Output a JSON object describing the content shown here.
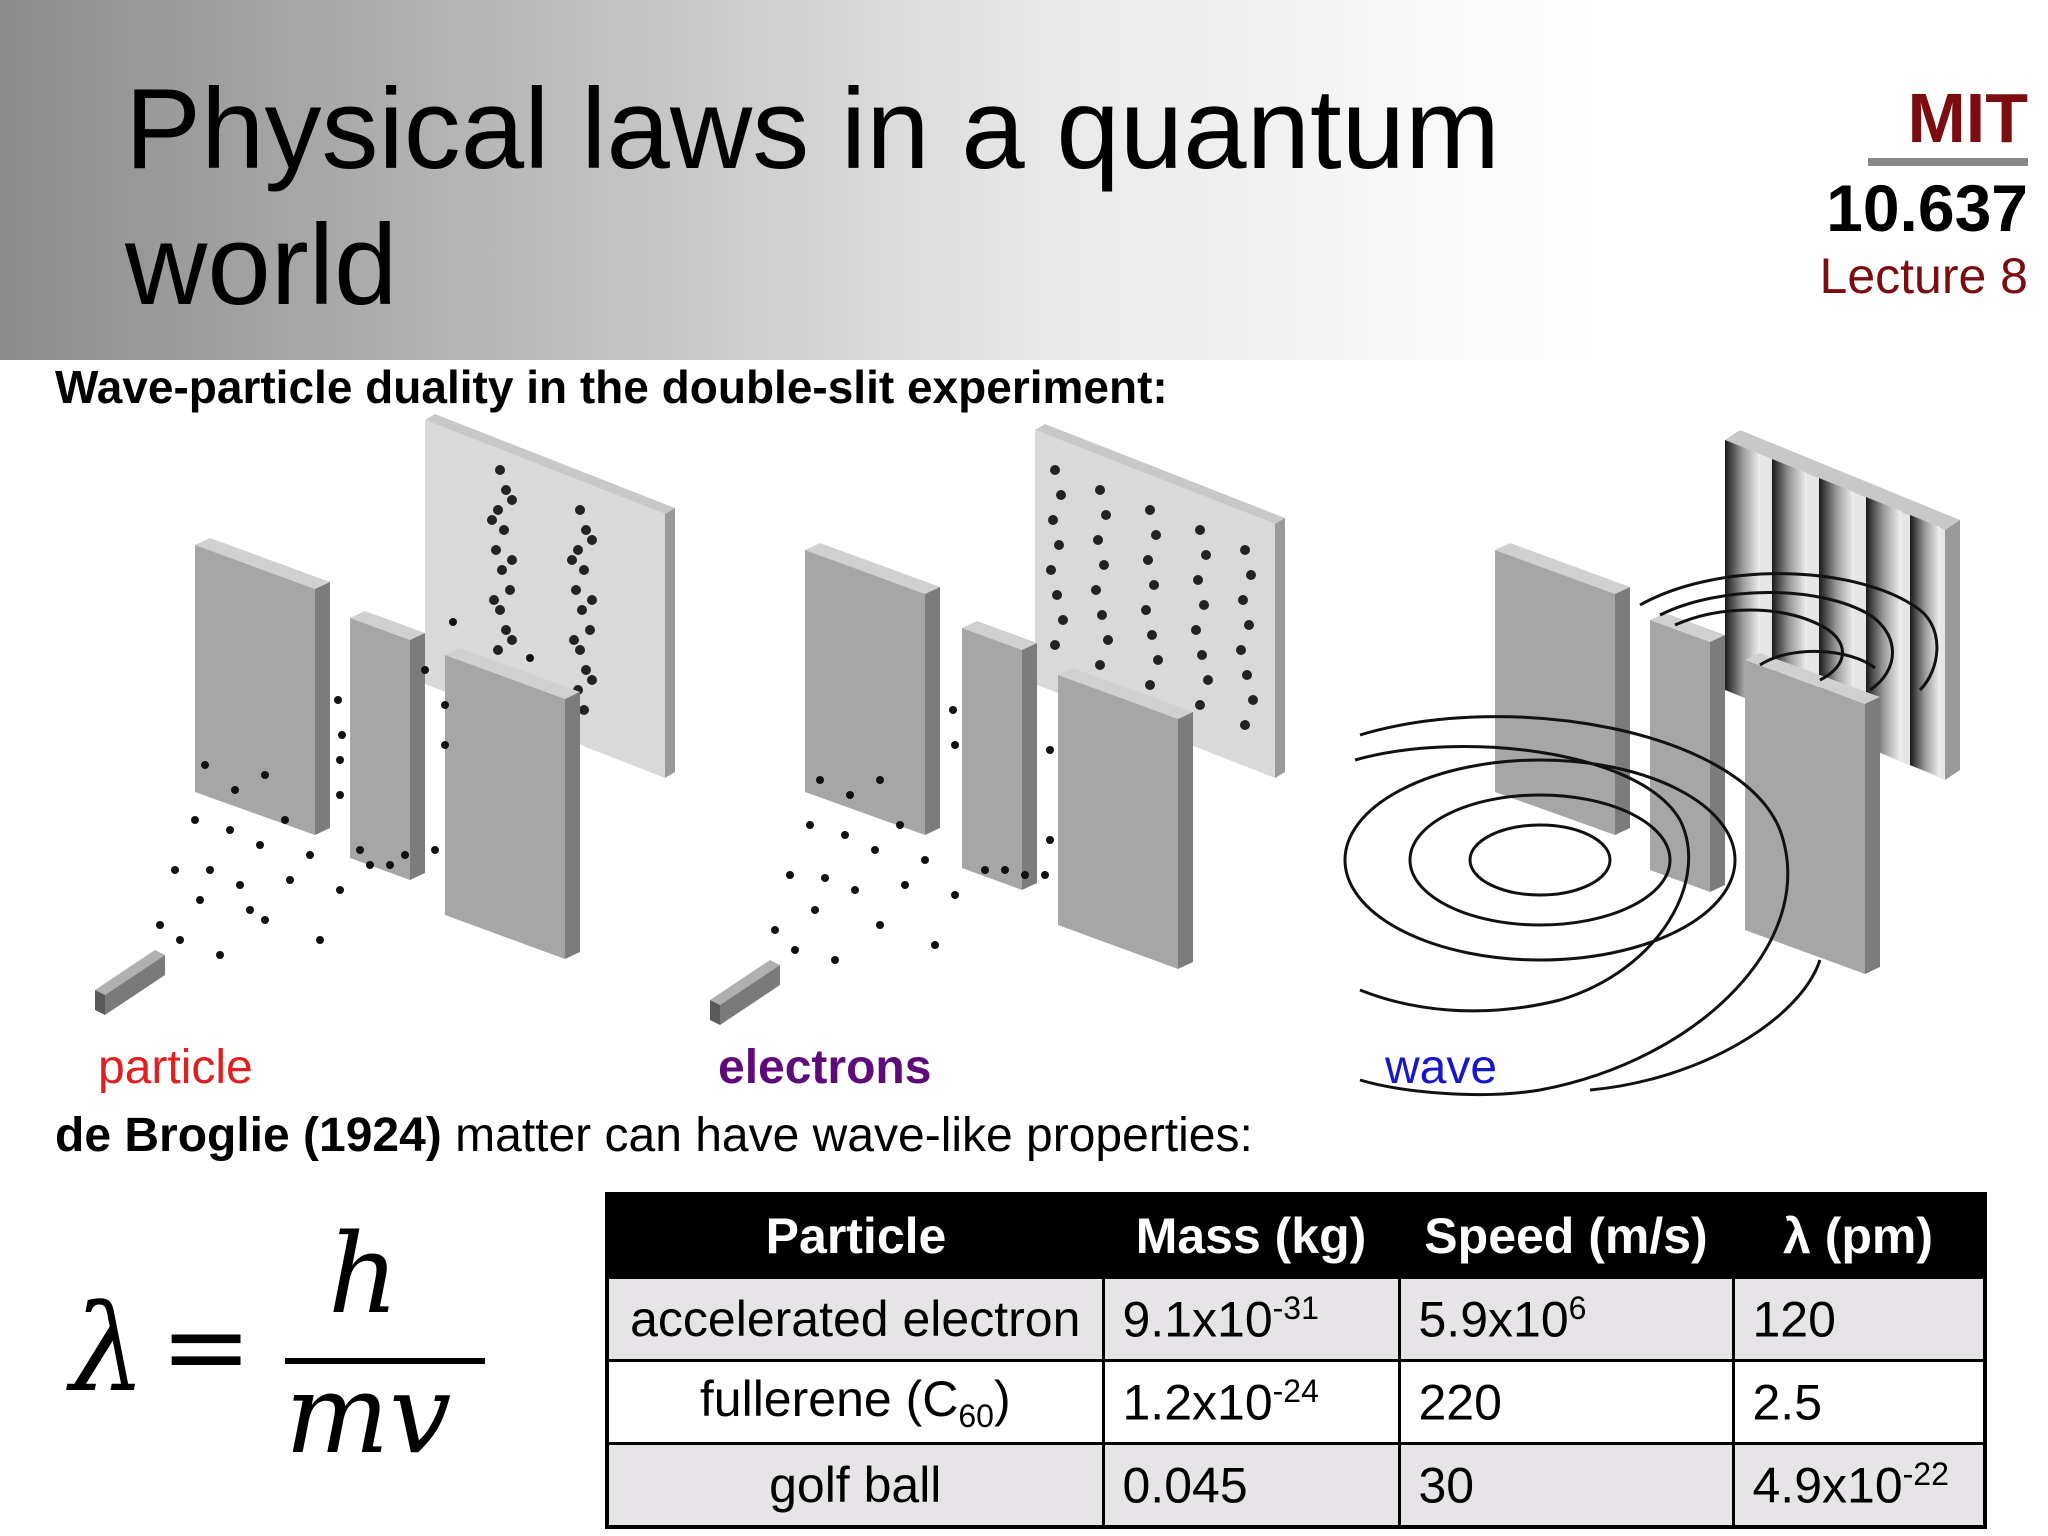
{
  "slide": {
    "title": "Physical laws in a quantum world",
    "institution": "MIT",
    "course": "10.637",
    "lecture": "Lecture 8",
    "subtitle": "Wave-particle duality in the double-slit experiment:"
  },
  "figure": {
    "labels": {
      "particle": "particle",
      "electrons": "electrons",
      "wave": "wave"
    }
  },
  "debroglie": {
    "bold": "de Broglie (1924)",
    "rest": " matter can have wave-like properties:"
  },
  "formula": {
    "lhs": "λ",
    "eq": "=",
    "numerator": "h",
    "denominator": "mv"
  },
  "table": {
    "headers": [
      "Particle",
      "Mass (kg)",
      "Speed (m/s)",
      "λ (pm)"
    ],
    "rows": [
      {
        "particle": "accelerated electron",
        "mass_base": "9.1x10",
        "mass_exp": "-31",
        "speed_base": "5.9x10",
        "speed_exp": "6",
        "lambda_base": "120",
        "lambda_exp": ""
      },
      {
        "particle_base": "fullerene (C",
        "particle_sub": "60",
        "particle_close": ")",
        "mass_base": "1.2x10",
        "mass_exp": "-24",
        "speed_base": "220",
        "speed_exp": "",
        "lambda_base": "2.5",
        "lambda_exp": ""
      },
      {
        "particle": "golf ball",
        "mass_base": "0.045",
        "mass_exp": "",
        "speed_base": "30",
        "speed_exp": "",
        "lambda_base": "4.9x10",
        "lambda_exp": "-22"
      }
    ]
  },
  "colors": {
    "mit_red": "#7b0c10",
    "particle_red": "#e02020",
    "electron_purple": "#5e0a7a",
    "wave_blue": "#1717c8"
  }
}
